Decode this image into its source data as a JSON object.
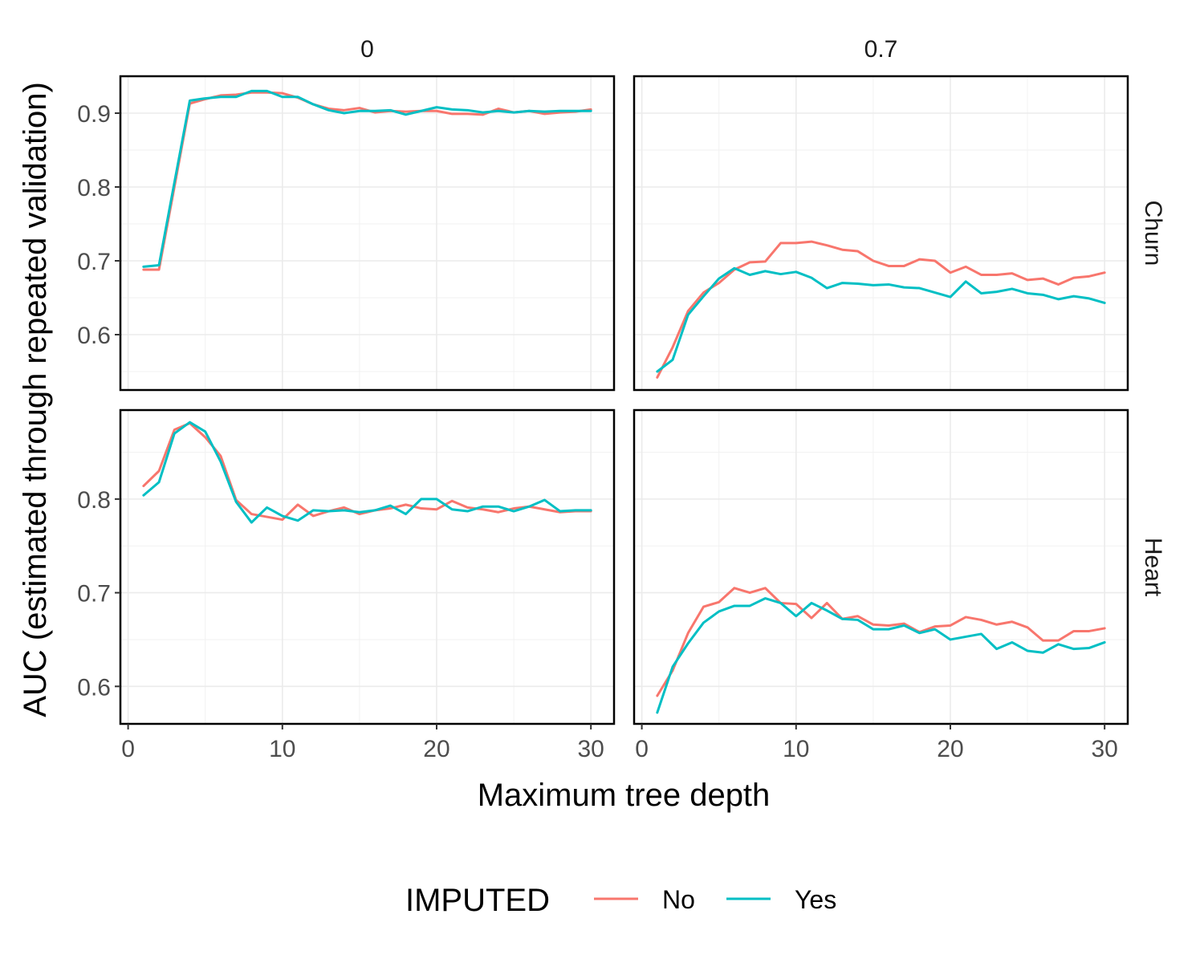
{
  "chart_data": {
    "type": "line",
    "xlabel": "Maximum tree depth",
    "ylabel": "AUC (estimated through repeated validation)",
    "columns": [
      "0",
      "0.7"
    ],
    "rows": [
      "Churn",
      "Heart"
    ],
    "legend": {
      "title": "IMPUTED",
      "placement": "bottom"
    },
    "series_styles": [
      {
        "name": "No",
        "color": "#F8766D"
      },
      {
        "name": "Yes",
        "color": "#00BFC4"
      }
    ],
    "x": [
      1,
      2,
      3,
      4,
      5,
      6,
      7,
      8,
      9,
      10,
      11,
      12,
      13,
      14,
      15,
      16,
      17,
      18,
      19,
      20,
      21,
      22,
      23,
      24,
      25,
      26,
      27,
      28,
      29,
      30
    ],
    "xlim": [
      -0.5,
      31.5
    ],
    "xticks": [
      0,
      10,
      20,
      30
    ],
    "grid": true,
    "panels": [
      {
        "row": "Churn",
        "col": "0",
        "ylim": [
          0.525,
          0.95
        ],
        "yticks": [
          0.6,
          0.7,
          0.8,
          0.9
        ],
        "series": [
          {
            "name": "No",
            "values": [
              0.688,
              0.688,
              0.8,
              0.913,
              0.919,
              0.924,
              0.925,
              0.928,
              0.928,
              0.927,
              0.921,
              0.912,
              0.906,
              0.904,
              0.907,
              0.901,
              0.903,
              0.902,
              0.903,
              0.903,
              0.899,
              0.899,
              0.898,
              0.906,
              0.901,
              0.903,
              0.899,
              0.901,
              0.902,
              0.905
            ]
          },
          {
            "name": "Yes",
            "values": [
              0.692,
              0.694,
              0.806,
              0.917,
              0.92,
              0.922,
              0.922,
              0.93,
              0.93,
              0.922,
              0.922,
              0.912,
              0.904,
              0.9,
              0.903,
              0.903,
              0.904,
              0.898,
              0.903,
              0.908,
              0.905,
              0.904,
              0.901,
              0.903,
              0.901,
              0.903,
              0.902,
              0.903,
              0.903,
              0.903
            ]
          }
        ]
      },
      {
        "row": "Churn",
        "col": "0.7",
        "ylim": [
          0.525,
          0.95
        ],
        "yticks": [
          0.6,
          0.7,
          0.8,
          0.9
        ],
        "series": [
          {
            "name": "No",
            "values": [
              0.542,
              0.583,
              0.632,
              0.657,
              0.67,
              0.688,
              0.698,
              0.699,
              0.724,
              0.724,
              0.726,
              0.721,
              0.715,
              0.713,
              0.7,
              0.693,
              0.693,
              0.702,
              0.7,
              0.684,
              0.692,
              0.681,
              0.681,
              0.683,
              0.674,
              0.676,
              0.668,
              0.677,
              0.679,
              0.684
            ]
          },
          {
            "name": "Yes",
            "values": [
              0.55,
              0.566,
              0.627,
              0.652,
              0.676,
              0.69,
              0.681,
              0.686,
              0.682,
              0.685,
              0.677,
              0.663,
              0.67,
              0.669,
              0.667,
              0.668,
              0.664,
              0.663,
              0.657,
              0.651,
              0.672,
              0.656,
              0.658,
              0.662,
              0.656,
              0.654,
              0.648,
              0.652,
              0.649,
              0.643
            ]
          }
        ]
      },
      {
        "row": "Heart",
        "col": "0",
        "ylim": [
          0.56,
          0.895
        ],
        "yticks": [
          0.6,
          0.7,
          0.8
        ],
        "series": [
          {
            "name": "No",
            "values": [
              0.814,
              0.83,
              0.874,
              0.881,
              0.866,
              0.846,
              0.799,
              0.784,
              0.781,
              0.778,
              0.794,
              0.782,
              0.787,
              0.791,
              0.784,
              0.788,
              0.79,
              0.794,
              0.79,
              0.789,
              0.798,
              0.791,
              0.789,
              0.786,
              0.79,
              0.792,
              0.789,
              0.786,
              0.787,
              0.787
            ]
          },
          {
            "name": "Yes",
            "values": [
              0.804,
              0.818,
              0.87,
              0.882,
              0.872,
              0.84,
              0.797,
              0.775,
              0.791,
              0.782,
              0.777,
              0.788,
              0.787,
              0.788,
              0.786,
              0.788,
              0.793,
              0.784,
              0.8,
              0.8,
              0.789,
              0.787,
              0.792,
              0.792,
              0.787,
              0.792,
              0.799,
              0.787,
              0.788,
              0.788
            ]
          }
        ]
      },
      {
        "row": "Heart",
        "col": "0.7",
        "ylim": [
          0.56,
          0.895
        ],
        "yticks": [
          0.6,
          0.7,
          0.8
        ],
        "series": [
          {
            "name": "No",
            "values": [
              0.59,
              0.617,
              0.657,
              0.685,
              0.69,
              0.705,
              0.7,
              0.705,
              0.689,
              0.688,
              0.673,
              0.689,
              0.672,
              0.675,
              0.666,
              0.665,
              0.667,
              0.658,
              0.664,
              0.665,
              0.674,
              0.671,
              0.666,
              0.669,
              0.663,
              0.649,
              0.649,
              0.659,
              0.659,
              0.662
            ]
          },
          {
            "name": "Yes",
            "values": [
              0.572,
              0.621,
              0.646,
              0.668,
              0.68,
              0.686,
              0.686,
              0.694,
              0.689,
              0.675,
              0.689,
              0.681,
              0.672,
              0.671,
              0.661,
              0.661,
              0.665,
              0.657,
              0.661,
              0.65,
              0.653,
              0.656,
              0.64,
              0.647,
              0.638,
              0.636,
              0.645,
              0.64,
              0.641,
              0.647
            ]
          }
        ]
      }
    ]
  }
}
